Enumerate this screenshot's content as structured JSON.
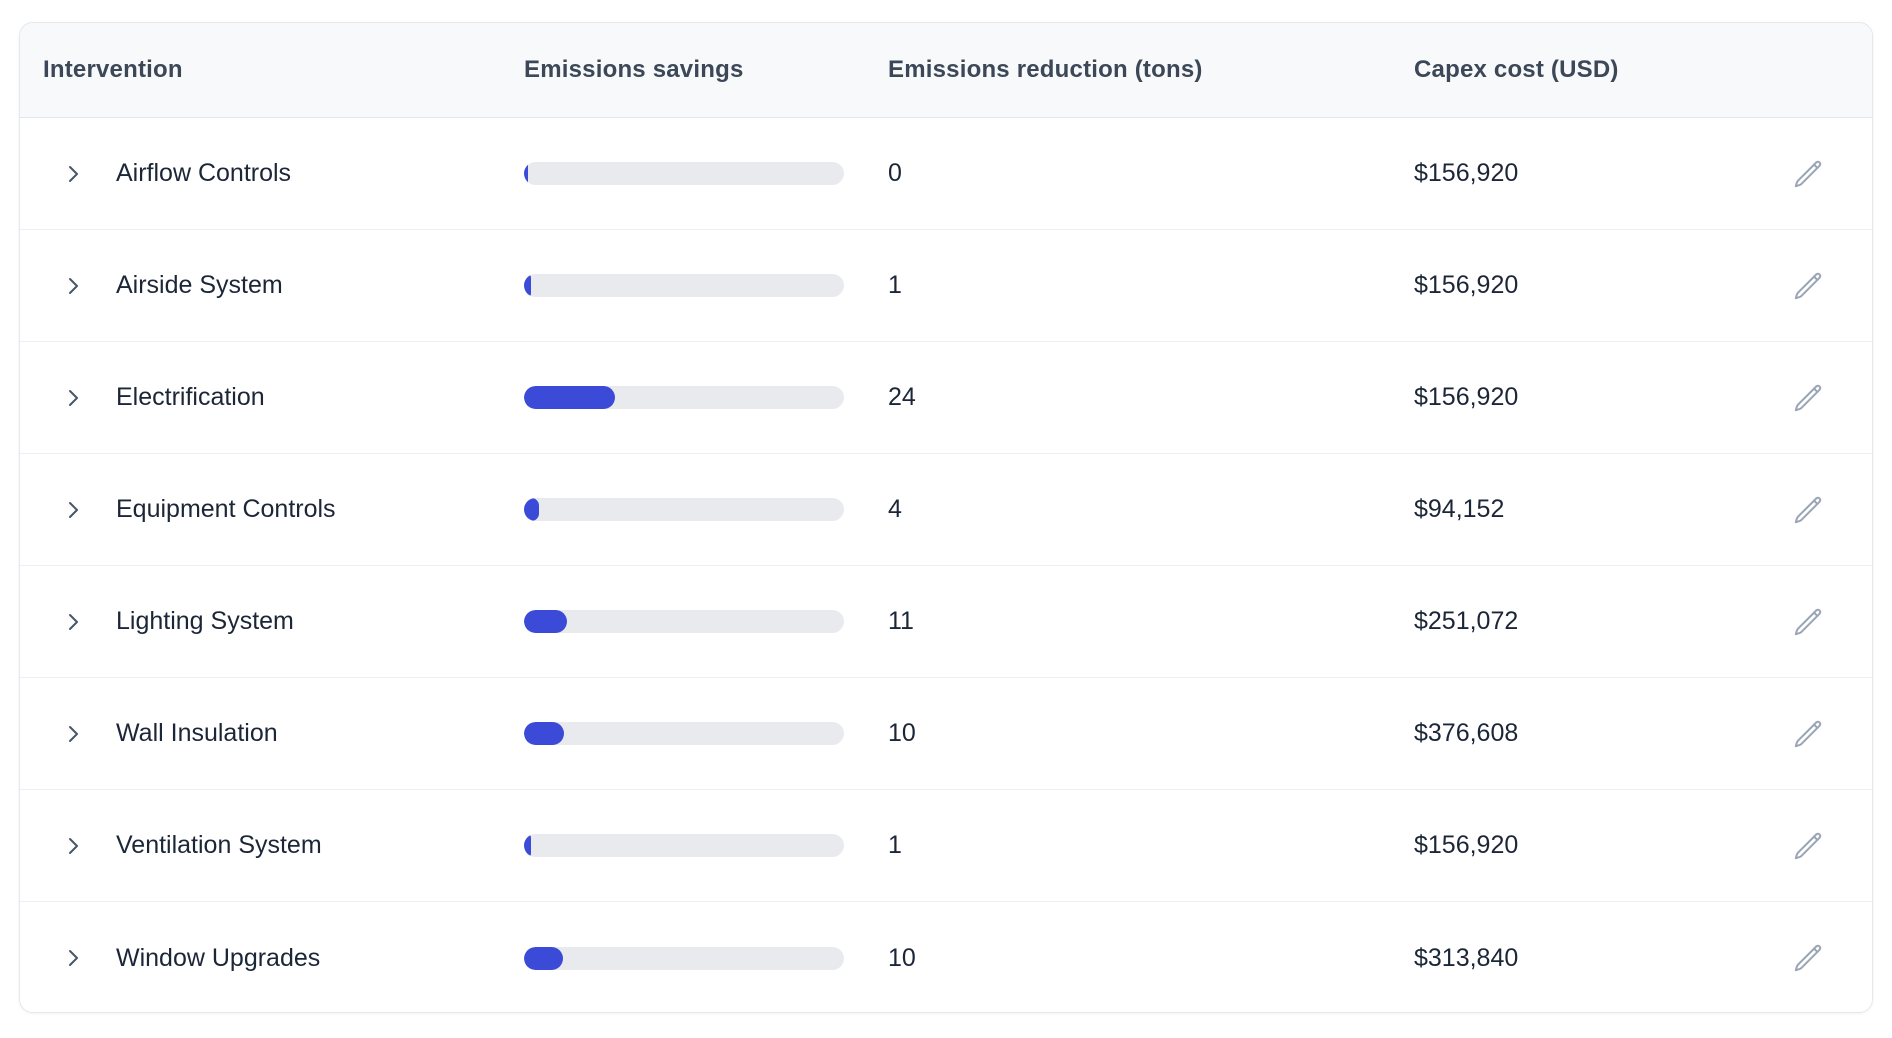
{
  "table": {
    "columns": [
      {
        "label": "Intervention"
      },
      {
        "label": "Emissions savings"
      },
      {
        "label": "Emissions reduction (tons)"
      },
      {
        "label": "Capex cost (USD)"
      }
    ],
    "rows": [
      {
        "name": "Airflow Controls",
        "emissions_reduction_tons": "0",
        "capex": "$156,920",
        "bar_percent": 1.0
      },
      {
        "name": "Airside System",
        "emissions_reduction_tons": "1",
        "capex": "$156,920",
        "bar_percent": 2.2
      },
      {
        "name": "Electrification",
        "emissions_reduction_tons": "24",
        "capex": "$156,920",
        "bar_percent": 28.5
      },
      {
        "name": "Equipment Controls",
        "emissions_reduction_tons": "4",
        "capex": "$94,152",
        "bar_percent": 4.7
      },
      {
        "name": "Lighting System",
        "emissions_reduction_tons": "11",
        "capex": "$251,072",
        "bar_percent": 13.4
      },
      {
        "name": "Wall Insulation",
        "emissions_reduction_tons": "10",
        "capex": "$376,608",
        "bar_percent": 12.5
      },
      {
        "name": "Ventilation System",
        "emissions_reduction_tons": "1",
        "capex": "$156,920",
        "bar_percent": 2.2
      },
      {
        "name": "Window Upgrades",
        "emissions_reduction_tons": "10",
        "capex": "$313,840",
        "bar_percent": 12.2
      }
    ]
  },
  "icons": {
    "expand": "chevron-right-icon",
    "edit": "pencil-icon"
  },
  "colors": {
    "bar_fill": "#3b4bd8",
    "bar_track": "#e9eaee",
    "header_bg": "#f8f9fb",
    "header_text": "#3c4757",
    "row_text": "#1b2637",
    "card_border": "#e4e7ec",
    "row_divider": "#edeff3",
    "chevron": "#475569",
    "pencil": "#9ba4b5",
    "page_bg": "#ffffff"
  }
}
